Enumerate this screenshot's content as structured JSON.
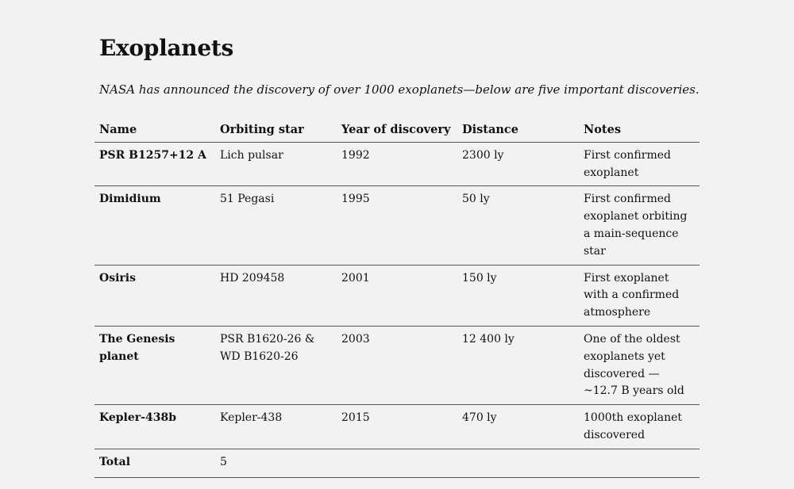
{
  "title": "Exoplanets",
  "intro": "NASA has announced the discovery of over 1000 exoplanets—below are five important discoveries.",
  "table": {
    "headers": [
      "Name",
      "Orbiting star",
      "Year of discovery",
      "Distance",
      "Notes"
    ],
    "rows": [
      {
        "name": "PSR B1257+12 A",
        "star": "Lich pulsar",
        "year": "1992",
        "distance": "2300 ly",
        "notes": "First confirmed exoplanet"
      },
      {
        "name": "Dimidium",
        "star": "51 Pegasi",
        "year": "1995",
        "distance": "50 ly",
        "notes": "First confirmed exoplanet orbiting a main-sequence star"
      },
      {
        "name": "Osiris",
        "star": "HD 209458",
        "year": "2001",
        "distance": "150 ly",
        "notes": "First exoplanet with a confirmed atmosphere"
      },
      {
        "name": "The Genesis planet",
        "star": "PSR B1620-26 & WD B1620-26",
        "year": "2003",
        "distance": "12 400 ly",
        "notes": "One of the oldest exoplanets yet discovered — ~12.7 B years old"
      },
      {
        "name": "Kepler-438b",
        "star": "Kepler-438",
        "year": "2015",
        "distance": "470 ly",
        "notes": "1000th exoplanet discovered"
      }
    ],
    "footer": {
      "label": "Total",
      "value": "5"
    }
  }
}
